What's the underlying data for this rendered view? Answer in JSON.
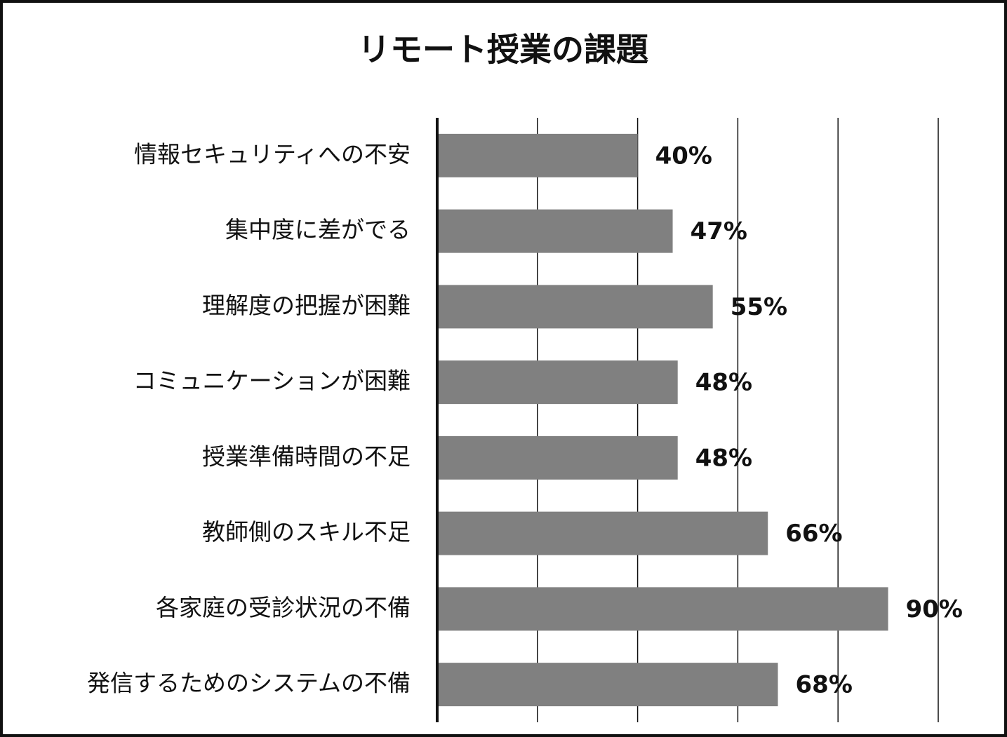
{
  "chart_data": {
    "type": "barh",
    "title": "リモート授業の課題",
    "categories": [
      "情報セキュリティへの不安",
      "集中度に差がでる",
      "理解度の把握が困難",
      "コミュニケーションが困難",
      "授業準備時間の不足",
      "教師側のスキル不足",
      "各家庭の受診状況の不備",
      "発信するためのシステムの不備"
    ],
    "values": [
      40,
      47,
      55,
      48,
      48,
      66,
      90,
      68
    ],
    "value_labels": [
      "40%",
      "47%",
      "55%",
      "48%",
      "48%",
      "66%",
      "90%",
      "68%"
    ],
    "color": "#808080",
    "xlim": [
      0,
      100
    ],
    "xticks": [
      0,
      20,
      40,
      60,
      80,
      100
    ],
    "grid": true
  }
}
